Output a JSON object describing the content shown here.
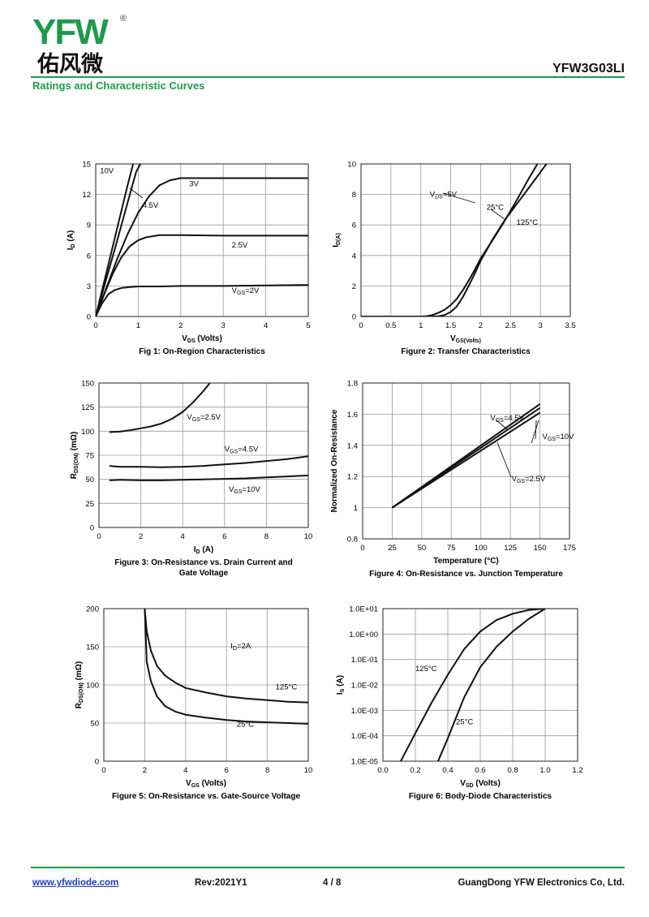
{
  "header": {
    "brand": "YFW",
    "brand_cn": "佑风微",
    "reg_mark": "®",
    "part_number": "YFW3G03LI",
    "section_title": "Ratings and Characteristic Curves",
    "accent_color": "#1f9a4a",
    "logo_color": "#e6a41c"
  },
  "footer": {
    "website": "www.yfwdiode.com",
    "revision": "Rev:2021Y1",
    "page": "4 / 8",
    "company": "GuangDong YFW Electronics Co, Ltd."
  },
  "chart_data": [
    {
      "type": "line",
      "caption": "Fig 1: On-Region Characteristics",
      "xlabel": "V_DS (Volts)",
      "ylabel": "I_D (A)",
      "xlim": [
        0,
        5
      ],
      "ylim": [
        0,
        15
      ],
      "xticks": [
        "0",
        "1",
        "2",
        "3",
        "4",
        "5"
      ],
      "yticks": [
        "0",
        "3",
        "6",
        "9",
        "12",
        "15"
      ],
      "grid": true,
      "series": [
        {
          "name": "10V",
          "x": [
            0,
            0.25,
            0.5,
            0.75,
            0.88
          ],
          "y": [
            0,
            4.3,
            8.6,
            12.9,
            15
          ]
        },
        {
          "name": "4.5V",
          "x": [
            0,
            0.25,
            0.5,
            0.75,
            0.95,
            1.05
          ],
          "y": [
            0,
            3.7,
            7.4,
            11.2,
            14.2,
            15
          ]
        },
        {
          "name": "3V",
          "x": [
            0,
            0.25,
            0.5,
            0.75,
            1.0,
            1.25,
            1.5,
            1.75,
            2.0,
            2.5,
            3,
            4,
            5
          ],
          "y": [
            0,
            2.8,
            5.6,
            8.1,
            10.2,
            11.8,
            12.9,
            13.4,
            13.6,
            13.6,
            13.6,
            13.6,
            13.6
          ]
        },
        {
          "name": "2.5V",
          "x": [
            0,
            0.2,
            0.4,
            0.6,
            0.8,
            1.0,
            1.2,
            1.5,
            2,
            3,
            4,
            5
          ],
          "y": [
            0,
            2.2,
            4.2,
            5.8,
            6.9,
            7.5,
            7.8,
            8.0,
            8.0,
            7.95,
            7.95,
            7.95
          ]
        },
        {
          "name": "V_GS=2V",
          "x": [
            0,
            0.15,
            0.3,
            0.45,
            0.6,
            0.8,
            1.0,
            1.5,
            2,
            3,
            4,
            5
          ],
          "y": [
            0,
            1.3,
            2.2,
            2.6,
            2.8,
            2.9,
            2.95,
            2.95,
            3.0,
            3.0,
            3.05,
            3.1
          ]
        }
      ],
      "labels": [
        {
          "text": "10V",
          "x": 0.1,
          "y": 14.1
        },
        {
          "text": "4.5V",
          "x": 1.1,
          "y": 10.7
        },
        {
          "text": "3V",
          "x": 2.2,
          "y": 12.8
        },
        {
          "text": "2.5V",
          "x": 3.2,
          "y": 6.8
        },
        {
          "text": "V_GS=2V",
          "x": 3.2,
          "y": 2.3
        }
      ]
    },
    {
      "type": "line",
      "caption": "Figure 2: Transfer Characteristics",
      "xlabel": "V_GS(Volts)",
      "ylabel": "I_D(A)",
      "xlim": [
        0,
        3.5
      ],
      "ylim": [
        0,
        10
      ],
      "xticks": [
        "0",
        "0.5",
        "1",
        "1.5",
        "2",
        "2.5",
        "3",
        "3.5"
      ],
      "yticks": [
        "0",
        "2",
        "4",
        "6",
        "8",
        "10"
      ],
      "grid": true,
      "series": [
        {
          "name": "25°C",
          "x": [
            0,
            1.0,
            1.1,
            1.2,
            1.3,
            1.4,
            1.5,
            1.6,
            1.7,
            1.8,
            1.9,
            2.0,
            2.2,
            2.4,
            2.6,
            2.8,
            2.95
          ],
          "y": [
            0,
            0,
            0.02,
            0.1,
            0.25,
            0.45,
            0.75,
            1.15,
            1.7,
            2.35,
            3.05,
            3.8,
            5.0,
            6.25,
            7.6,
            9.0,
            10
          ]
        },
        {
          "name": "125°C",
          "x": [
            0,
            1.2,
            1.3,
            1.4,
            1.5,
            1.6,
            1.7,
            1.8,
            1.9,
            2.0,
            2.2,
            2.4,
            2.6,
            2.8,
            3.0,
            3.1
          ],
          "y": [
            0,
            0,
            0.02,
            0.1,
            0.3,
            0.65,
            1.25,
            2.0,
            2.8,
            3.65,
            5.05,
            6.3,
            7.35,
            8.4,
            9.45,
            10
          ]
        }
      ],
      "labels": [
        {
          "text": "V_DS=5V",
          "x": 1.15,
          "y": 7.85
        },
        {
          "text": "25°C",
          "x": 2.1,
          "y": 7.0
        },
        {
          "text": "125°C",
          "x": 2.6,
          "y": 6.0
        }
      ]
    },
    {
      "type": "line",
      "caption": "Figure 3: On-Resistance vs. Drain Current and Gate Voltage",
      "xlabel": "I_D (A)",
      "ylabel": "R_DS(ON) (mΩ)",
      "xlim": [
        0,
        10
      ],
      "ylim": [
        0,
        150
      ],
      "xticks": [
        "0",
        "2",
        "4",
        "6",
        "8",
        "10"
      ],
      "yticks": [
        "0",
        "25",
        "50",
        "75",
        "100",
        "125",
        "150"
      ],
      "grid": true,
      "series": [
        {
          "name": "V_GS=2.5V",
          "x": [
            0.5,
            1,
            1.5,
            2,
            2.5,
            3,
            3.5,
            4,
            4.5,
            5,
            5.3
          ],
          "y": [
            99,
            99.5,
            101,
            103,
            105,
            108,
            113,
            120,
            130,
            142,
            150
          ]
        },
        {
          "name": "V_GS=4.5V",
          "x": [
            0.5,
            1,
            2,
            3,
            4,
            5,
            6,
            7,
            8,
            9,
            10
          ],
          "y": [
            64,
            63,
            63,
            62.5,
            63,
            64,
            65.5,
            67,
            69,
            71,
            74
          ]
        },
        {
          "name": "V_GS=10V",
          "x": [
            0.5,
            1,
            2,
            3,
            4,
            5,
            6,
            7,
            8,
            9,
            10
          ],
          "y": [
            49,
            49.5,
            49,
            49,
            49.5,
            50,
            50.5,
            51,
            52,
            53,
            54
          ]
        }
      ],
      "labels": [
        {
          "text": "V_GS=2.5V",
          "x": 4.2,
          "y": 112
        },
        {
          "text": "V_GS=4.5V",
          "x": 6.0,
          "y": 79
        },
        {
          "text": "V_GS=10V",
          "x": 6.2,
          "y": 37
        }
      ]
    },
    {
      "type": "line",
      "caption": "Figure 4: On-Resistance vs. Junction Temperature",
      "xlabel": "Temperature (°C)",
      "ylabel": "Normalized On-Resistance",
      "xlim": [
        0,
        175
      ],
      "ylim": [
        0.8,
        1.8
      ],
      "xticks": [
        "0",
        "25",
        "50",
        "75",
        "100",
        "125",
        "150",
        "175"
      ],
      "yticks": [
        "0.8",
        "1",
        "1.2",
        "1.4",
        "1.6",
        "1.8"
      ],
      "grid": true,
      "series": [
        {
          "name": "V_GS=4.5V",
          "x": [
            25,
            150
          ],
          "y": [
            1.0,
            1.64
          ]
        },
        {
          "name": "V_GS=10V",
          "x": [
            25,
            150
          ],
          "y": [
            1.0,
            1.665
          ]
        },
        {
          "name": "V_GS=2.5V",
          "x": [
            25,
            150
          ],
          "y": [
            1.0,
            1.61
          ]
        }
      ],
      "labels": [
        {
          "text": "V_GS=4.5V",
          "x": 108,
          "y": 1.56
        },
        {
          "text": "V_GS=10V",
          "x": 152,
          "y": 1.44
        },
        {
          "text": "V_GS=2.5V",
          "x": 126,
          "y": 1.17
        }
      ]
    },
    {
      "type": "line",
      "caption": "Figure 5: On-Resistance vs. Gate-Source Voltage",
      "xlabel": "V_GS (Volts)",
      "ylabel": "R_DS(ON) (mΩ)",
      "xlim": [
        0,
        10
      ],
      "ylim": [
        0,
        200
      ],
      "xticks": [
        "0",
        "2",
        "4",
        "6",
        "8",
        "10"
      ],
      "yticks": [
        "0",
        "50",
        "100",
        "150",
        "200"
      ],
      "grid": true,
      "series": [
        {
          "name": "125°C",
          "x": [
            2,
            2.1,
            2.3,
            2.6,
            3,
            3.5,
            4,
            5,
            6,
            7,
            8,
            9,
            10
          ],
          "y": [
            200,
            170,
            145,
            125,
            112,
            103,
            96,
            90,
            85,
            82,
            80,
            78,
            77
          ]
        },
        {
          "name": "25°C",
          "x": [
            2,
            2.1,
            2.3,
            2.6,
            3,
            3.5,
            4,
            5,
            6,
            7,
            8,
            9,
            10
          ],
          "y": [
            200,
            130,
            105,
            85,
            72,
            65,
            61,
            57,
            54,
            52,
            51,
            50,
            49
          ]
        }
      ],
      "labels": [
        {
          "text": "I_D=2A",
          "x": 6.2,
          "y": 148
        },
        {
          "text": "125°C",
          "x": 8.4,
          "y": 94
        },
        {
          "text": "25°C",
          "x": 6.5,
          "y": 45
        }
      ]
    },
    {
      "type": "line",
      "caption": "Figure 6: Body-Diode Characteristics",
      "xlabel": "V_SD (Volts)",
      "ylabel": "I_S (A)",
      "xlim": [
        0,
        1.2
      ],
      "ylim": [
        -5,
        1
      ],
      "yscale": "log",
      "xticks": [
        "0.0",
        "0.2",
        "0.4",
        "0.6",
        "0.8",
        "1.0",
        "1.2"
      ],
      "yticks": [
        "1.0E-05",
        "1.0E-04",
        "1.0E-03",
        "1.0E-02",
        "1.0E-01",
        "1.0E+00",
        "1.0E+01"
      ],
      "grid": true,
      "series": [
        {
          "name": "125°C",
          "x": [
            0.11,
            0.2,
            0.3,
            0.4,
            0.5,
            0.6,
            0.7,
            0.8,
            0.9,
            1.0
          ],
          "y_log10": [
            -5,
            -3.9,
            -2.7,
            -1.6,
            -0.6,
            0.1,
            0.55,
            0.8,
            0.95,
            1
          ]
        },
        {
          "name": "25°C",
          "x": [
            0.34,
            0.4,
            0.5,
            0.6,
            0.7,
            0.8,
            0.9,
            1.0
          ],
          "y_log10": [
            -5,
            -4.1,
            -2.5,
            -1.3,
            -0.5,
            0.1,
            0.6,
            1
          ]
        }
      ],
      "labels": [
        {
          "text": "125°C",
          "x": 0.2,
          "y_log10": -1.45
        },
        {
          "text": "25°C",
          "x": 0.45,
          "y_log10": -3.55
        }
      ]
    }
  ]
}
